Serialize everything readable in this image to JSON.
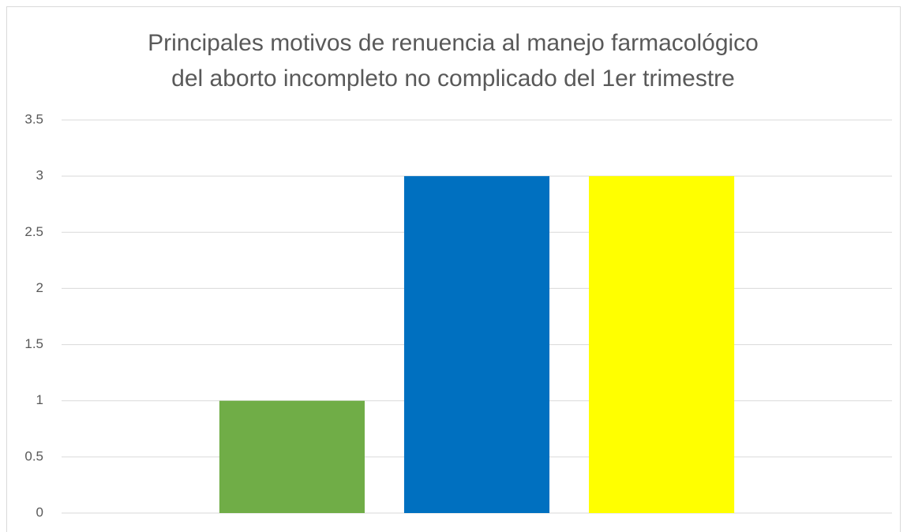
{
  "chart_data": {
    "type": "bar",
    "title": [
      "Principales motivos de renuencia al manejo farmacológico",
      "del aborto incompleto no complicado del 1er trimestre"
    ],
    "categories": [
      null
    ],
    "series": [
      {
        "color": "#70ad47",
        "values": [
          1
        ]
      },
      {
        "color": "#0070c0",
        "values": [
          3
        ]
      },
      {
        "color": "#ffff00",
        "values": [
          3
        ]
      }
    ],
    "ylim": [
      0,
      3.5
    ],
    "yticks": [
      0,
      0.5,
      1,
      1.5,
      2,
      2.5,
      3,
      3.5
    ],
    "grid": true
  }
}
